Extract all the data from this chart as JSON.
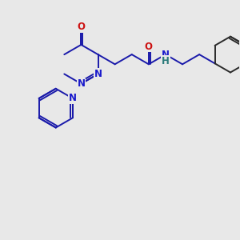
{
  "bg_color": "#e8e8e8",
  "bond_color_blue": "#1a1aaa",
  "bond_color_dark": "#2a2a2a",
  "bond_color_teal": "#2a7a7a",
  "atom_N_color": "#1a1acc",
  "atom_O_color": "#cc1111",
  "atom_NH_color": "#2a7a7a",
  "bond_lw": 1.4,
  "fig_size": [
    3.0,
    3.0
  ],
  "dpi": 100,
  "xlim": [
    0,
    10
  ],
  "ylim": [
    0,
    10
  ],
  "font_size": 8.5
}
